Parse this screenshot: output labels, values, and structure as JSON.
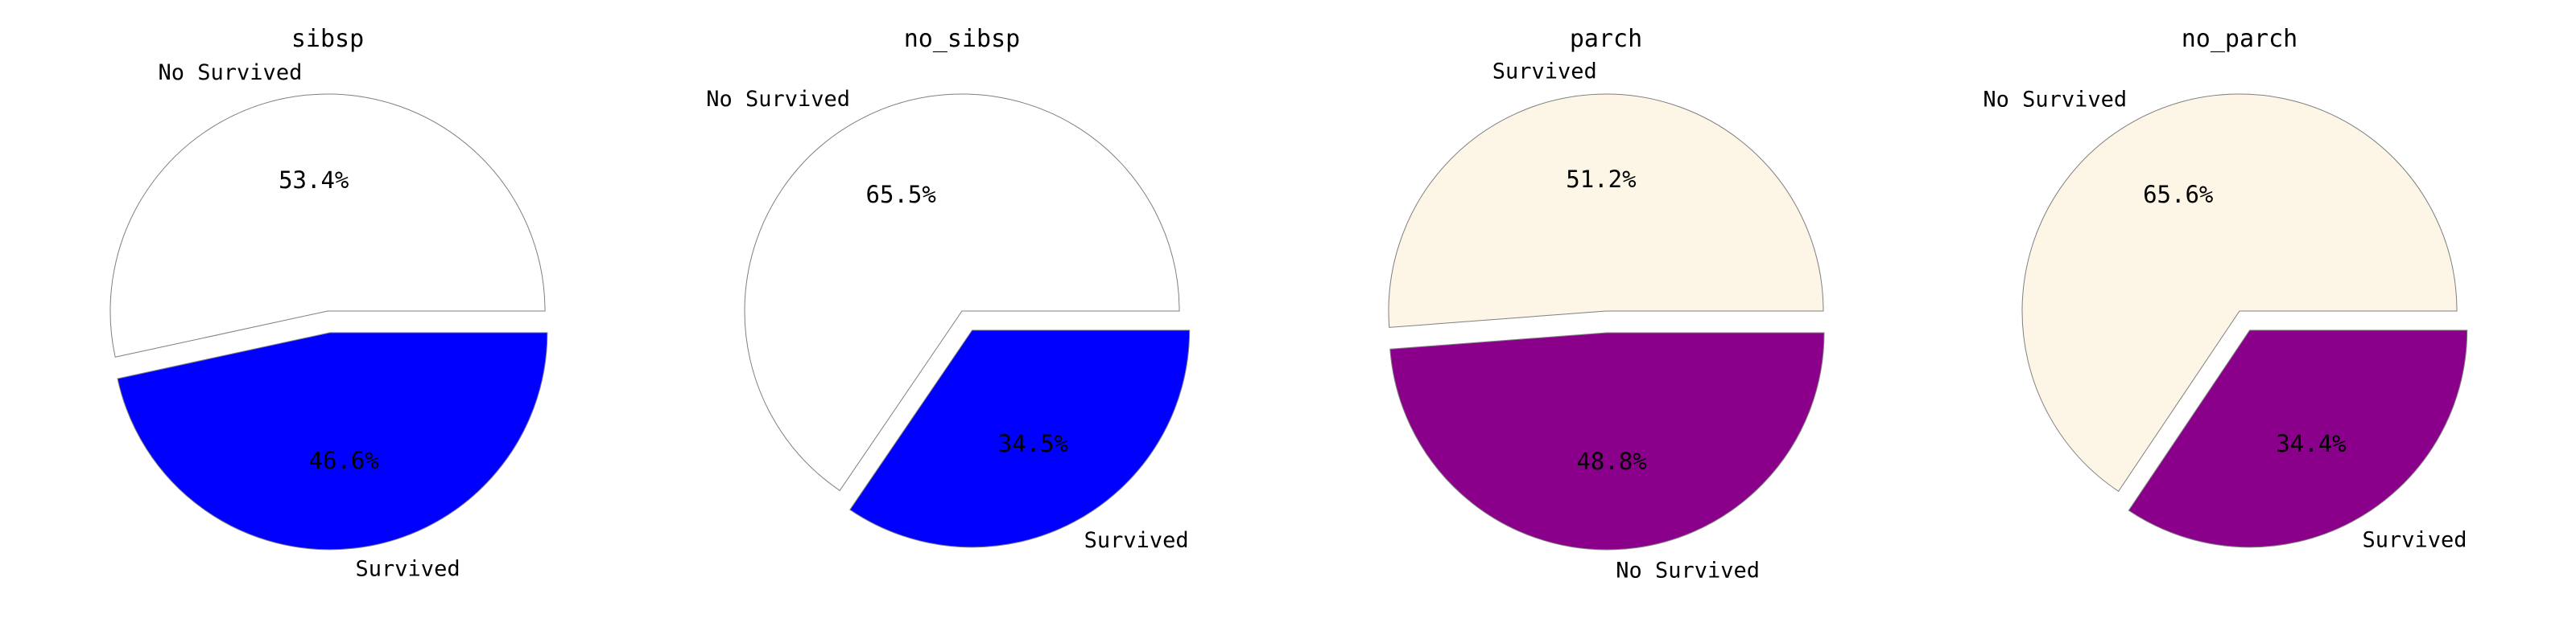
{
  "chart_data": [
    {
      "type": "pie",
      "title": "sibsp",
      "slices": [
        {
          "label": "No Survived",
          "value": 53.4,
          "pct_label": "53.4%",
          "color": "#ffffff",
          "explode": 0
        },
        {
          "label": "Survived",
          "value": 46.6,
          "pct_label": "46.6%",
          "color": "#0000ff",
          "explode": 0.1
        }
      ]
    },
    {
      "type": "pie",
      "title": "no_sibsp",
      "slices": [
        {
          "label": "No Survived",
          "value": 65.5,
          "pct_label": "65.5%",
          "color": "#ffffff",
          "explode": 0
        },
        {
          "label": "Survived",
          "value": 34.5,
          "pct_label": "34.5%",
          "color": "#0000ff",
          "explode": 0.1
        }
      ]
    },
    {
      "type": "pie",
      "title": "parch",
      "slices": [
        {
          "label": "Survived",
          "value": 51.2,
          "pct_label": "51.2%",
          "color": "#fdf5e6",
          "explode": 0
        },
        {
          "label": "No Survived",
          "value": 48.8,
          "pct_label": "48.8%",
          "color": "#8b008b",
          "explode": 0.1
        }
      ]
    },
    {
      "type": "pie",
      "title": "no_parch",
      "slices": [
        {
          "label": "No Survived",
          "value": 65.6,
          "pct_label": "65.6%",
          "color": "#fdf5e6",
          "explode": 0
        },
        {
          "label": "Survived",
          "value": 34.4,
          "pct_label": "34.4%",
          "color": "#8b008b",
          "explode": 0.1
        }
      ]
    }
  ]
}
